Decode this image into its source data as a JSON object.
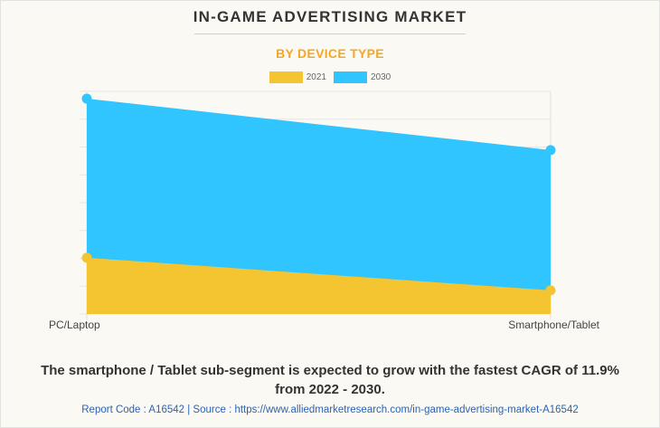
{
  "header": {
    "title": "IN-GAME ADVERTISING MARKET",
    "subtitle": "BY DEVICE TYPE"
  },
  "colors": {
    "series_2021": "#f4c531",
    "series_2030": "#30c5ff",
    "subtitle": "#f6a623",
    "source_link": "#2a63b5"
  },
  "chart_data": {
    "type": "area",
    "title": "IN-GAME ADVERTISING MARKET",
    "subtitle": "BY DEVICE TYPE",
    "categories": [
      "PC/Laptop",
      "Smartphone/Tablet"
    ],
    "series": [
      {
        "name": "2030",
        "values": [
          7.74,
          5.89
        ]
      },
      {
        "name": "2021",
        "values": [
          2.02,
          0.85
        ]
      }
    ],
    "xlabel": "",
    "ylabel": "",
    "ylim": [
      0,
      8
    ],
    "y_gridlines": 8,
    "y_tick_labels": "none (relative scale)",
    "grid": true,
    "legend": "top-center"
  },
  "legend": [
    {
      "label": "2021",
      "color": "#f4c531"
    },
    {
      "label": "2030",
      "color": "#30c5ff"
    }
  ],
  "footer": {
    "insight_line1": "The smartphone / Tablet sub-segment is expected to grow with the fastest CAGR of 11.9%",
    "insight_line2": "from 2022 - 2030.",
    "source": "Report Code : A16542  |  Source : https://www.alliedmarketresearch.com/in-game-advertising-market-A16542"
  }
}
